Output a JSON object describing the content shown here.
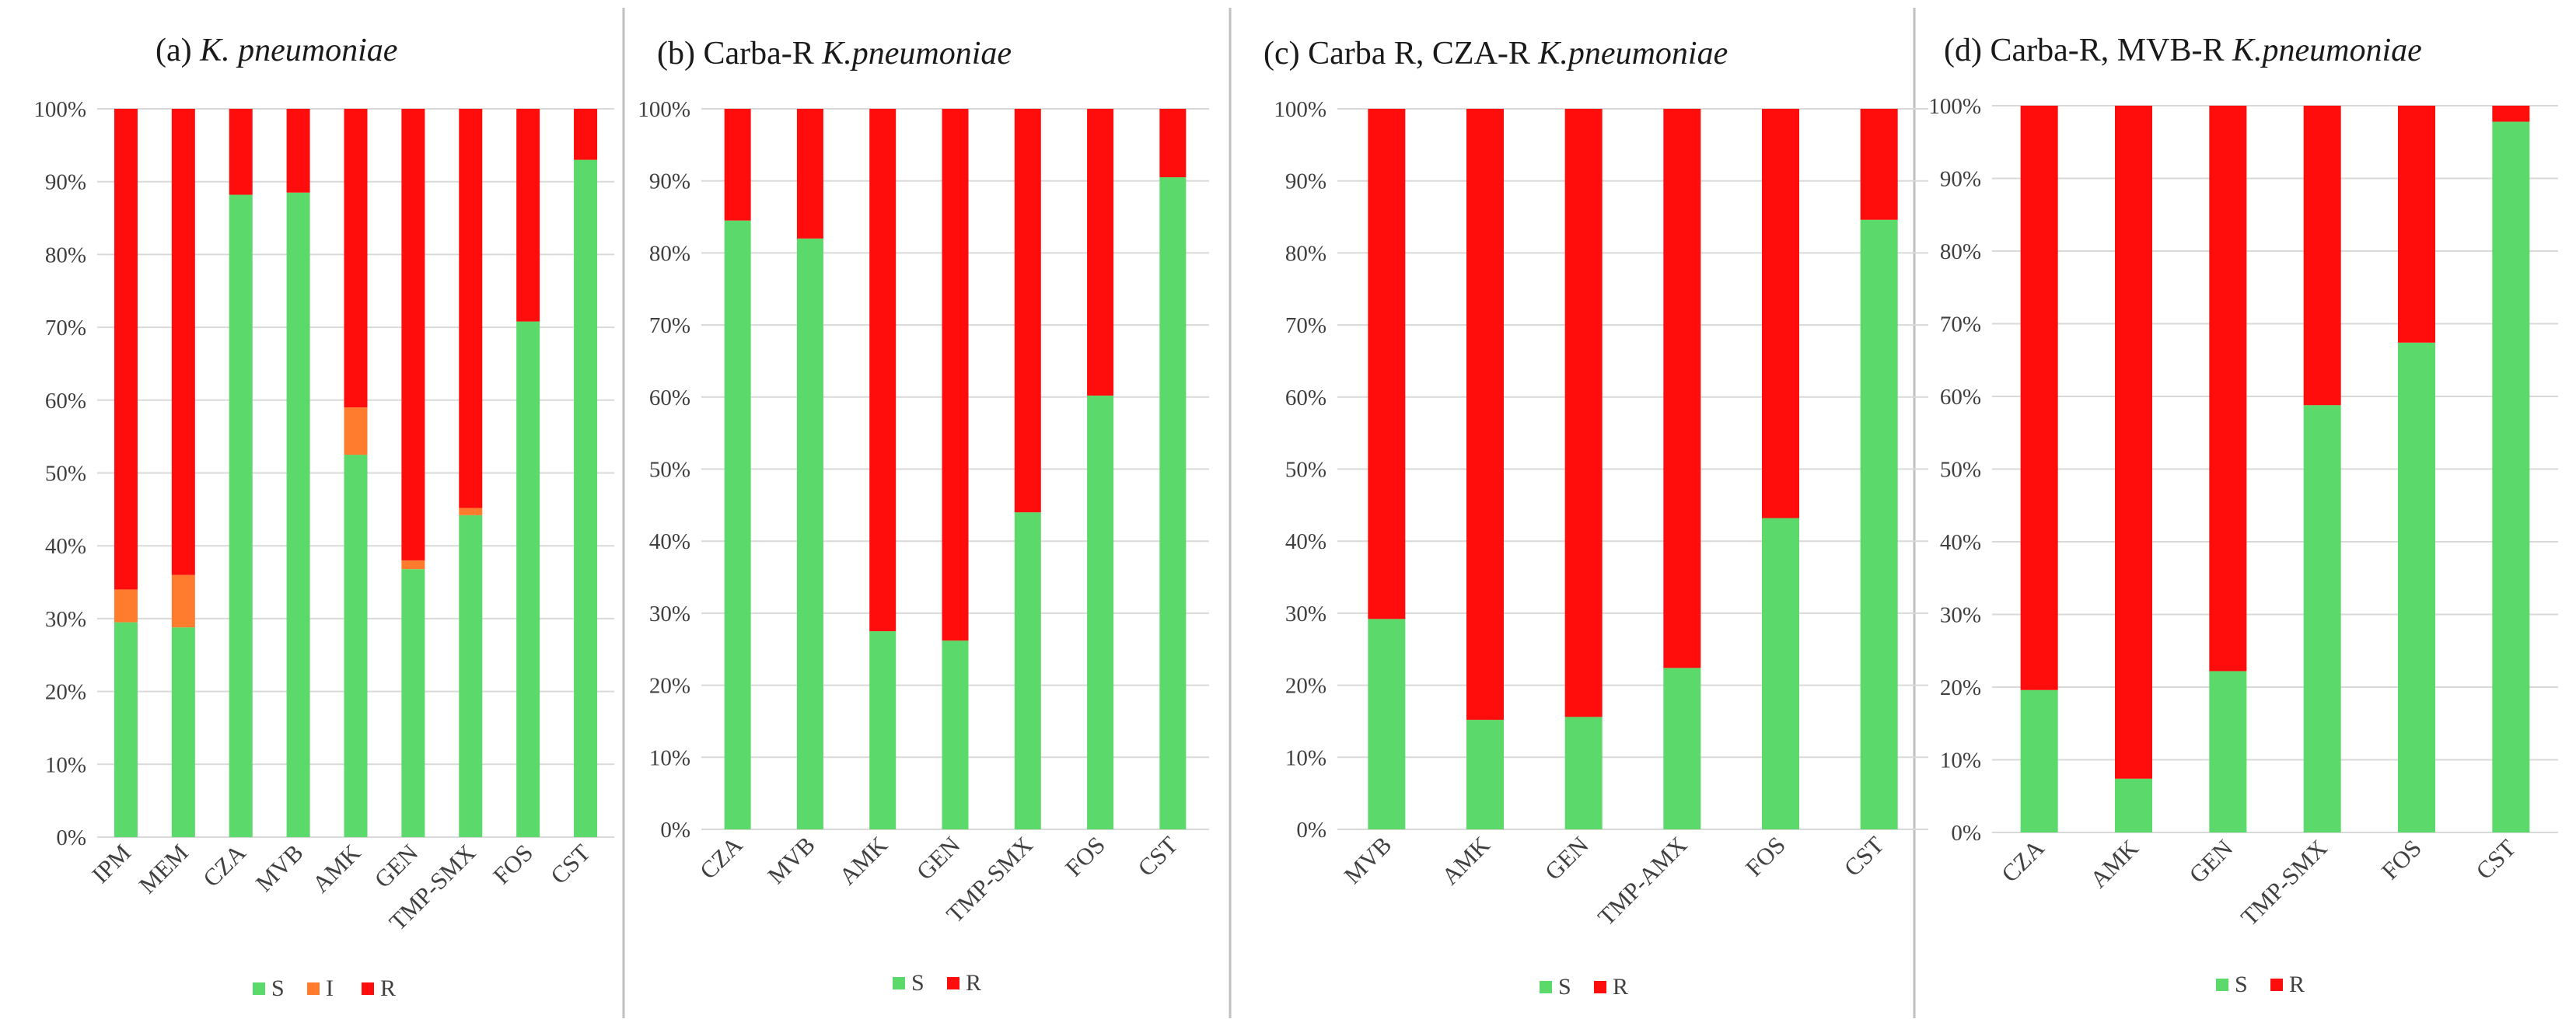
{
  "figure": {
    "colors": {
      "S": "#5bd96a",
      "I": "#ff7b2e",
      "R": "#ff0d0d"
    },
    "ytick_labels": [
      "0%",
      "10%",
      "20%",
      "30%",
      "40%",
      "50%",
      "60%",
      "70%",
      "80%",
      "90%",
      "100%"
    ]
  },
  "chart_data": [
    {
      "type": "bar",
      "stacked": true,
      "panel_label": "(a)",
      "title_plain": "",
      "title_italic": "K. pneumoniae",
      "categories": [
        "IPM",
        "MEM",
        "CZA",
        "MVB",
        "AMK",
        "GEN",
        "TMP-SMX",
        "FOS",
        "CST"
      ],
      "series": [
        {
          "name": "S",
          "values": [
            29.5,
            28.8,
            88.2,
            88.5,
            52.5,
            36.8,
            44.2,
            70.8,
            93.0
          ]
        },
        {
          "name": "I",
          "values": [
            4.5,
            7.2,
            0,
            0,
            6.5,
            1.2,
            1.0,
            0,
            0
          ]
        },
        {
          "name": "R",
          "values": [
            66.0,
            64.0,
            11.8,
            11.5,
            41.0,
            62.0,
            54.8,
            29.2,
            7.0
          ]
        }
      ],
      "legend": [
        "S",
        "I",
        "R"
      ],
      "ylim": [
        0,
        100
      ],
      "xlabel": "",
      "ylabel": ""
    },
    {
      "type": "bar",
      "stacked": true,
      "panel_label": "(b)",
      "title_plain": "Carba-R",
      "title_italic": "K.pneumoniae",
      "categories": [
        "CZA",
        "MVB",
        "AMK",
        "GEN",
        "TMP-SMX",
        "FOS",
        "CST"
      ],
      "series": [
        {
          "name": "S",
          "values": [
            84.5,
            82.0,
            27.5,
            26.2,
            44.0,
            60.2,
            90.5
          ]
        },
        {
          "name": "R",
          "values": [
            15.5,
            18.0,
            72.5,
            73.8,
            56.0,
            39.8,
            9.5
          ]
        }
      ],
      "legend": [
        "S",
        "R"
      ],
      "ylim": [
        0,
        100
      ],
      "xlabel": "",
      "ylabel": ""
    },
    {
      "type": "bar",
      "stacked": true,
      "panel_label": "(c)",
      "title_plain": "Carba R, CZA-R",
      "title_italic": "K.pneumoniae",
      "categories": [
        "MVB",
        "AMK",
        "GEN",
        "TMP-AMX",
        "FOS",
        "CST"
      ],
      "series": [
        {
          "name": "S",
          "values": [
            29.2,
            15.2,
            15.6,
            22.4,
            43.2,
            84.6
          ]
        },
        {
          "name": "R",
          "values": [
            70.8,
            84.8,
            84.4,
            77.6,
            56.8,
            15.4
          ]
        }
      ],
      "legend": [
        "S",
        "R"
      ],
      "ylim": [
        0,
        100
      ],
      "xlabel": "",
      "ylabel": ""
    },
    {
      "type": "bar",
      "stacked": true,
      "panel_label": "(d)",
      "title_plain": "Carba-R, MVB-R",
      "title_italic": "K.pneumoniae",
      "categories": [
        "CZA",
        "AMK",
        "GEN",
        "TMP-SMX",
        "FOS",
        "CST"
      ],
      "series": [
        {
          "name": "S",
          "values": [
            19.6,
            7.4,
            22.2,
            58.8,
            67.4,
            97.8
          ]
        },
        {
          "name": "R",
          "values": [
            80.4,
            92.6,
            77.8,
            41.2,
            32.6,
            2.2
          ]
        }
      ],
      "legend": [
        "S",
        "R"
      ],
      "ylim": [
        0,
        100
      ],
      "xlabel": "",
      "ylabel": ""
    }
  ]
}
